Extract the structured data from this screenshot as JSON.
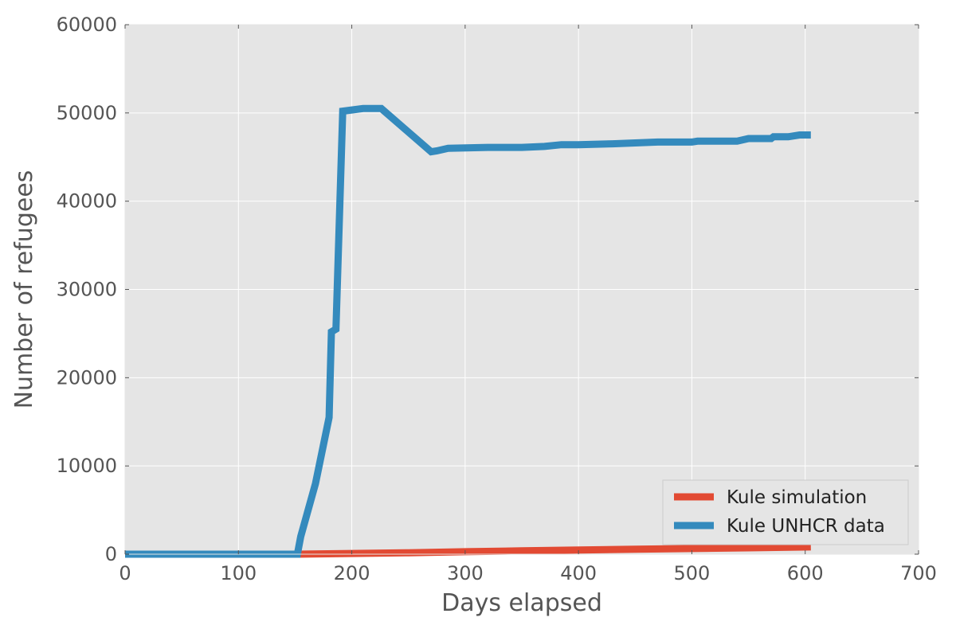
{
  "chart_data": {
    "type": "line",
    "title": "",
    "xlabel": "Days elapsed",
    "ylabel": "Number of refugees",
    "xlim": [
      0,
      700
    ],
    "ylim": [
      0,
      60000
    ],
    "xticks": [
      0,
      100,
      200,
      300,
      400,
      500,
      600,
      700
    ],
    "yticks": [
      0,
      10000,
      20000,
      30000,
      40000,
      50000,
      60000
    ],
    "grid": true,
    "background_color": "#e5e5e5",
    "legend_position": "lower-right",
    "series": [
      {
        "name": "Kule simulation",
        "color": "#e24a33",
        "x": [
          0,
          150,
          200,
          250,
          300,
          350,
          400,
          450,
          500,
          550,
          605
        ],
        "y": [
          0,
          0,
          80,
          160,
          280,
          380,
          470,
          560,
          640,
          720,
          820
        ]
      },
      {
        "name": "Kule UNHCR data",
        "color": "#348abd",
        "x": [
          0,
          152,
          155,
          168,
          180,
          182,
          186,
          192,
          210,
          226,
          270,
          275,
          285,
          320,
          350,
          370,
          385,
          400,
          430,
          450,
          470,
          500,
          505,
          540,
          550,
          570,
          572,
          585,
          595,
          605
        ],
        "y": [
          0,
          0,
          2000,
          8000,
          15500,
          25200,
          25500,
          50200,
          50500,
          50500,
          45600,
          45700,
          46000,
          46100,
          46100,
          46200,
          46400,
          46400,
          46500,
          46600,
          46700,
          46700,
          46800,
          46800,
          47100,
          47100,
          47300,
          47300,
          47500,
          47500
        ]
      }
    ]
  }
}
